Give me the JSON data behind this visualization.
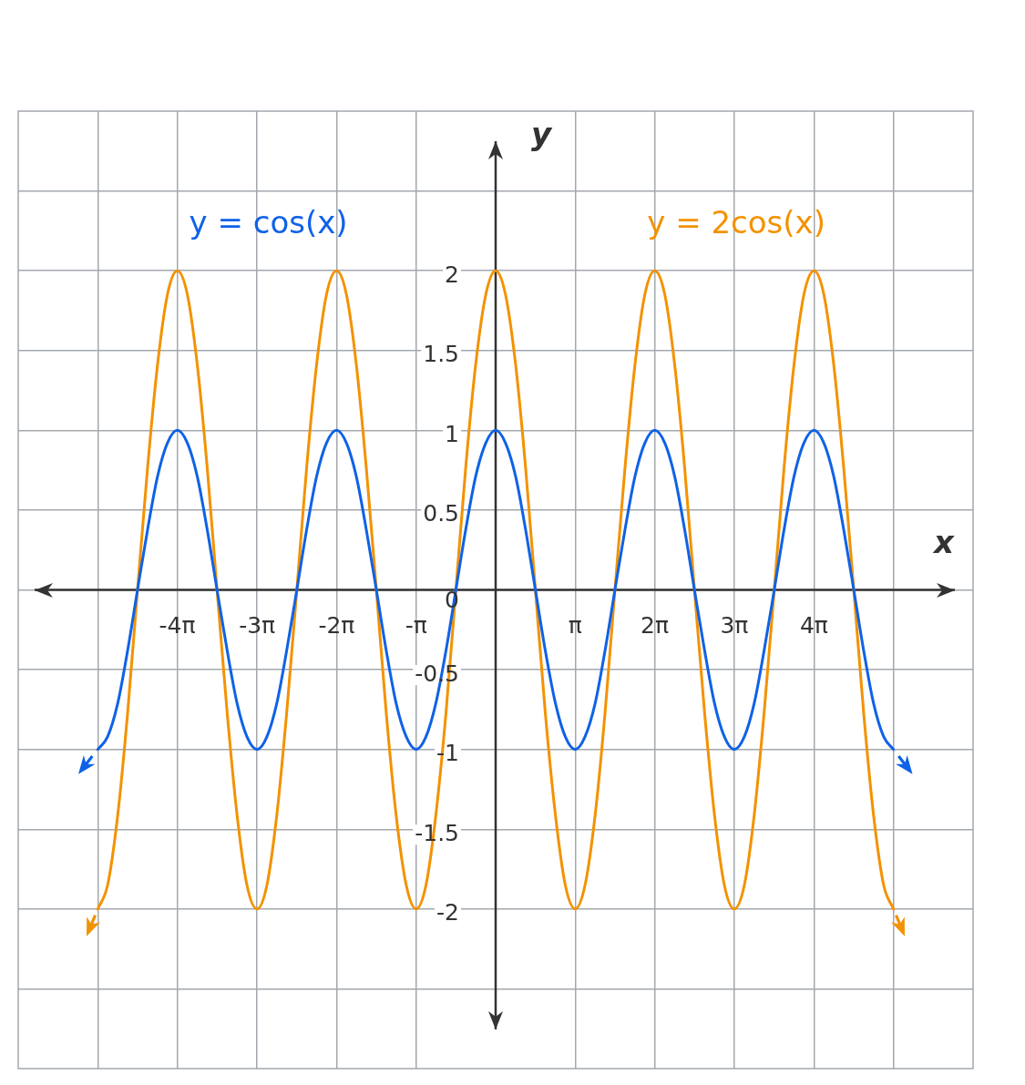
{
  "chart_data": {
    "type": "line",
    "xlabel": "x",
    "ylabel": "y",
    "x": [
      -15.71,
      -15.32,
      -14.92,
      -14.53,
      -14.14,
      -13.74,
      -13.35,
      -12.96,
      -12.57,
      -12.17,
      -11.78,
      -11.39,
      -11.0,
      -10.6,
      -10.21,
      -9.82,
      -9.42,
      -9.03,
      -8.64,
      -8.25,
      -7.85,
      -7.46,
      -7.07,
      -6.68,
      -6.28,
      -5.89,
      -5.5,
      -5.11,
      -4.71,
      -4.32,
      -3.93,
      -3.53,
      -3.14,
      -2.75,
      -2.36,
      -1.96,
      -1.57,
      -1.18,
      -0.79,
      -0.39,
      0,
      0.39,
      0.79,
      1.18,
      1.57,
      1.96,
      2.36,
      2.75,
      3.14,
      3.53,
      3.93,
      4.32,
      4.71,
      5.11,
      5.5,
      5.89,
      6.28,
      6.68,
      7.07,
      7.46,
      7.85,
      8.25,
      8.64,
      9.03,
      9.42,
      9.82,
      10.21,
      10.6,
      11.0,
      11.39,
      11.78,
      12.17,
      12.57,
      12.96,
      13.35,
      13.74,
      14.14,
      14.53,
      14.92,
      15.32,
      15.71
    ],
    "series": [
      {
        "name": "y = cos(x)",
        "color": "#0f62e6",
        "values": [
          -1,
          -0.92,
          -0.71,
          -0.38,
          0,
          0.38,
          0.71,
          0.92,
          1,
          0.92,
          0.71,
          0.38,
          0,
          -0.38,
          -0.71,
          -0.92,
          -1,
          -0.92,
          -0.71,
          -0.38,
          0,
          0.38,
          0.71,
          0.92,
          1,
          0.92,
          0.71,
          0.38,
          0,
          -0.38,
          -0.71,
          -0.92,
          -1,
          -0.92,
          -0.71,
          -0.38,
          0,
          0.38,
          0.71,
          0.92,
          1,
          0.92,
          0.71,
          0.38,
          0,
          -0.38,
          -0.71,
          -0.92,
          -1,
          -0.92,
          -0.71,
          -0.38,
          0,
          0.38,
          0.71,
          0.92,
          1,
          0.92,
          0.71,
          0.38,
          0,
          -0.38,
          -0.71,
          -0.92,
          -1,
          -0.92,
          -0.71,
          -0.38,
          0,
          0.38,
          0.71,
          0.92,
          1,
          0.92,
          0.71,
          0.38,
          0,
          -0.38,
          -0.71,
          -0.92,
          -1
        ]
      },
      {
        "name": "y = 2cos(x)",
        "color": "#f39200",
        "values": [
          -2,
          -1.85,
          -1.41,
          -0.77,
          0,
          0.77,
          1.41,
          1.85,
          2,
          1.85,
          1.41,
          0.77,
          0,
          -0.77,
          -1.41,
          -1.85,
          -2,
          -1.85,
          -1.41,
          -0.77,
          0,
          0.77,
          1.41,
          1.85,
          2,
          1.85,
          1.41,
          0.77,
          0,
          -0.77,
          -1.41,
          -1.85,
          -2,
          -1.85,
          -1.41,
          -0.77,
          0,
          0.77,
          1.41,
          1.85,
          2,
          1.85,
          1.41,
          0.77,
          0,
          -0.77,
          -1.41,
          -1.85,
          -2,
          -1.85,
          -1.41,
          -0.77,
          0,
          0.77,
          1.41,
          1.85,
          2,
          1.85,
          1.41,
          0.77,
          0,
          -0.77,
          -1.41,
          -1.85,
          -2,
          -1.85,
          -1.41,
          -0.77,
          0,
          0.77,
          1.41,
          1.85,
          2,
          1.85,
          1.41,
          0.77,
          0,
          -0.77,
          -1.41,
          -1.85,
          -2
        ]
      }
    ],
    "xlim": [
      -18.85,
      18.85
    ],
    "xticks": [
      {
        "value": -15.71,
        "label": null
      },
      {
        "value": -12.57,
        "label": "-4π"
      },
      {
        "value": -9.42,
        "label": "-3π"
      },
      {
        "value": -6.28,
        "label": "-2π"
      },
      {
        "value": -3.14,
        "label": "-π"
      },
      {
        "value": 3.14,
        "label": "π"
      },
      {
        "value": 6.28,
        "label": "2π"
      },
      {
        "value": 9.42,
        "label": "3π"
      },
      {
        "value": 12.57,
        "label": "4π"
      },
      {
        "value": 15.71,
        "label": null
      }
    ],
    "ylim": [
      -3,
      3
    ],
    "yticks": [
      {
        "value": -2.5,
        "label": null
      },
      -2,
      -1.5,
      -1,
      -0.5,
      0,
      0.5,
      1,
      1.5,
      2,
      {
        "value": 2.5,
        "label": null
      }
    ],
    "grid": true
  }
}
